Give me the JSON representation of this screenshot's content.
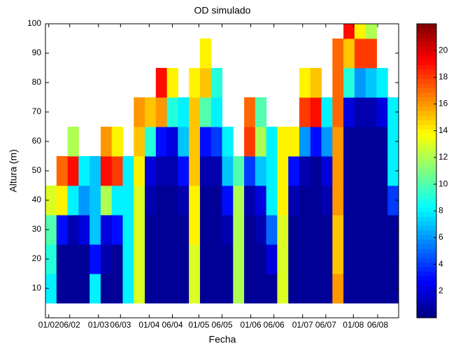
{
  "chart_data": {
    "type": "heatmap",
    "title": "OD simulado",
    "x_label": "Fecha",
    "y_label": "Altura (m)",
    "x": [
      0.5,
      1.5,
      2.5,
      3.5,
      4.5,
      5.5,
      6.5,
      7.5,
      8.5,
      9.5,
      10.5,
      11.5,
      12.5,
      13.5,
      14.5,
      15.5,
      16.5,
      17.5,
      18.5,
      19.5,
      20.5,
      21.5,
      22.5,
      23.5,
      24.5,
      25.5,
      26.5,
      27.5,
      28.5,
      29.5,
      30.5,
      31.5
    ],
    "y_edges": [
      5,
      15,
      25,
      35,
      45,
      55,
      65,
      75,
      85,
      95,
      100
    ],
    "values": [
      [
        8,
        9,
        10,
        13,
        null,
        null,
        null,
        null,
        null,
        null
      ],
      [
        0.5,
        0.5,
        3,
        14,
        17,
        null,
        null,
        null,
        null,
        null
      ],
      [
        0.5,
        0.5,
        1,
        8,
        19,
        12,
        null,
        null,
        null,
        null
      ],
      [
        0.5,
        0.5,
        2,
        6,
        8,
        null,
        null,
        null,
        null,
        null
      ],
      [
        8,
        3,
        7,
        7,
        7,
        null,
        null,
        null,
        null,
        null
      ],
      [
        0.5,
        1,
        2,
        12,
        19,
        16,
        null,
        null,
        null,
        null
      ],
      [
        0.5,
        0.5,
        3,
        8,
        18,
        14,
        null,
        null,
        null,
        null
      ],
      [
        8,
        8,
        8,
        8,
        8,
        null,
        null,
        null,
        null,
        null
      ],
      [
        13,
        13,
        13,
        13,
        14,
        15,
        16,
        null,
        null,
        null
      ],
      [
        0.5,
        0.5,
        0.5,
        1,
        2,
        9,
        15,
        null,
        null,
        null
      ],
      [
        0.5,
        0.5,
        0.5,
        0.5,
        1,
        3,
        16,
        19,
        null,
        null
      ],
      [
        0.5,
        0.5,
        0.5,
        0.5,
        1,
        2,
        9,
        14,
        null,
        null
      ],
      [
        0.5,
        0.5,
        0.5,
        1,
        3,
        7,
        8,
        null,
        null,
        null
      ],
      [
        13,
        13,
        14,
        14,
        15,
        15,
        15,
        14,
        null,
        null
      ],
      [
        0.5,
        0.5,
        0.5,
        0.5,
        1,
        3,
        10,
        15,
        14,
        null
      ],
      [
        0.5,
        0.5,
        0.5,
        0.5,
        1,
        4,
        8,
        9,
        null,
        null
      ],
      [
        0.5,
        0.5,
        1,
        3,
        7,
        8,
        null,
        null,
        null,
        null
      ],
      [
        12,
        12,
        12,
        12,
        10,
        null,
        null,
        null,
        null,
        null
      ],
      [
        0.5,
        0.5,
        0.5,
        1,
        4,
        18,
        17,
        null,
        null,
        null
      ],
      [
        0.5,
        0.5,
        1,
        2,
        7,
        12,
        10,
        null,
        null,
        null
      ],
      [
        0.5,
        2,
        5,
        8,
        8,
        8,
        null,
        null,
        null,
        null
      ],
      [
        13,
        13,
        13,
        14,
        14,
        14,
        null,
        null,
        null,
        null
      ],
      [
        0.5,
        0.5,
        0.5,
        1,
        3,
        14,
        null,
        null,
        null,
        null
      ],
      [
        0.5,
        0.5,
        0.5,
        0.5,
        1,
        6,
        18,
        14,
        null,
        null
      ],
      [
        0.5,
        0.5,
        0.5,
        0.5,
        0.5,
        3,
        19,
        15,
        null,
        null
      ],
      [
        0.5,
        0.5,
        0.5,
        1,
        2,
        6,
        8,
        null,
        null,
        null
      ],
      [
        16,
        15,
        15,
        16,
        16,
        16,
        17,
        17,
        17,
        null
      ],
      [
        0.5,
        0.5,
        0.5,
        0.5,
        0.5,
        0.5,
        2,
        9,
        15,
        19
      ],
      [
        0.5,
        0.5,
        0.5,
        0.5,
        0.5,
        0.5,
        1,
        6,
        18,
        14
      ],
      [
        0.5,
        0.5,
        0.5,
        0.5,
        0.5,
        0.5,
        1,
        7,
        18,
        12
      ],
      [
        0.5,
        0.5,
        0.5,
        0.5,
        0.5,
        0.5,
        2,
        8,
        null,
        null
      ],
      [
        0.5,
        0.5,
        0.5,
        4,
        8,
        8,
        8,
        null,
        null,
        null
      ]
    ],
    "xlim": [
      0,
      32
    ],
    "xticks": [
      {
        "value": 0.3,
        "label": "01/02"
      },
      {
        "value": 2.2,
        "label": "06/02"
      },
      {
        "value": 4.8,
        "label": "01/03"
      },
      {
        "value": 6.8,
        "label": "06/03"
      },
      {
        "value": 9.4,
        "label": "01/04"
      },
      {
        "value": 11.5,
        "label": "06/04"
      },
      {
        "value": 13.9,
        "label": "01/05"
      },
      {
        "value": 16.0,
        "label": "06/05"
      },
      {
        "value": 18.6,
        "label": "01/06"
      },
      {
        "value": 20.7,
        "label": "06/06"
      },
      {
        "value": 23.3,
        "label": "01/07"
      },
      {
        "value": 25.4,
        "label": "06/07"
      },
      {
        "value": 27.9,
        "label": "01/08"
      },
      {
        "value": 30.1,
        "label": "06/08"
      }
    ],
    "ylim": [
      0,
      100
    ],
    "yticks": [
      10,
      20,
      30,
      40,
      50,
      60,
      70,
      80,
      90,
      100
    ],
    "clim": [
      0,
      22
    ],
    "colorbar_ticks": [
      2,
      4,
      6,
      8,
      10,
      12,
      14,
      16,
      18,
      20
    ],
    "colormap": "jet"
  }
}
